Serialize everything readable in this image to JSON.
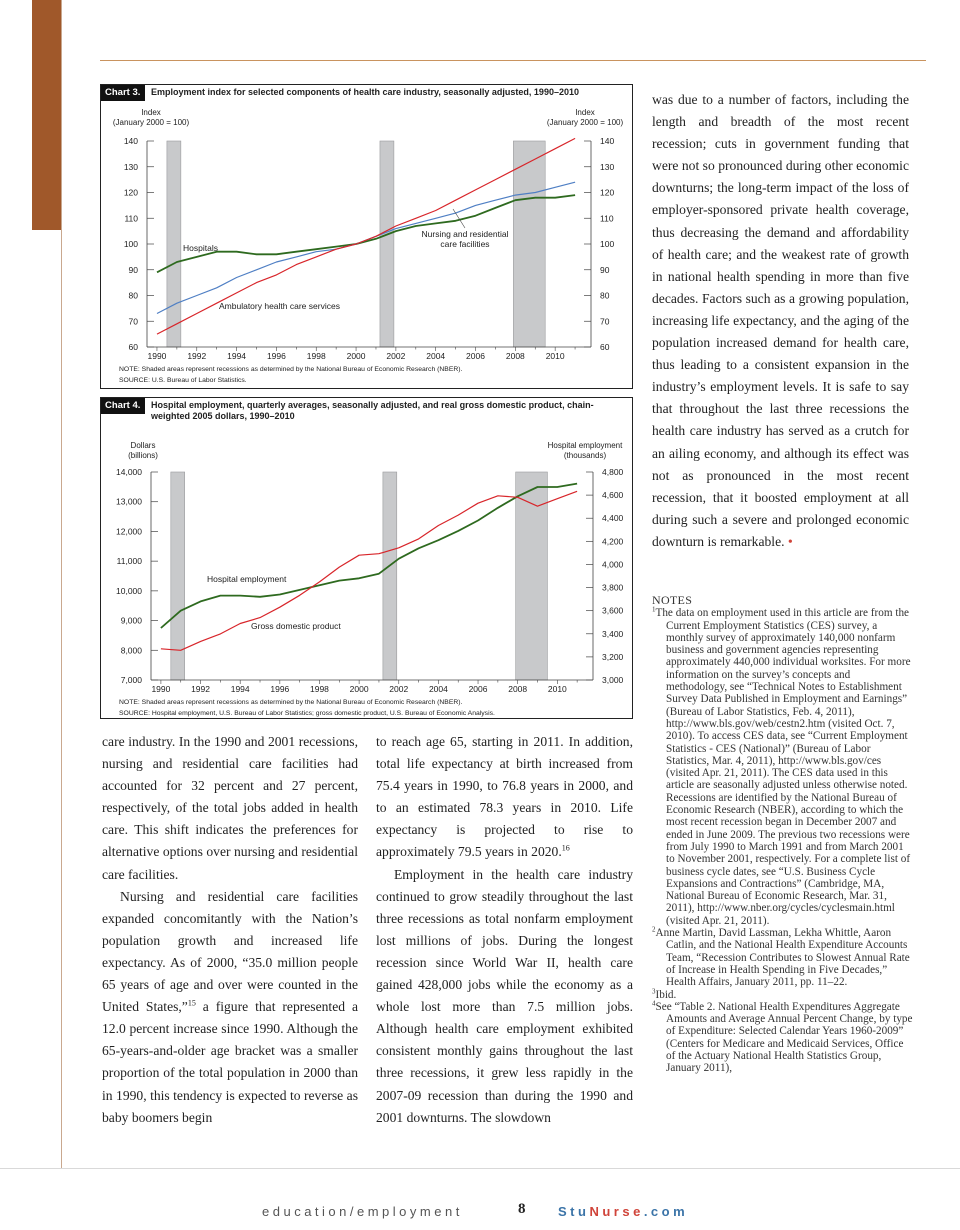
{
  "chart3": {
    "label": "Chart 3.",
    "title": "Employment index for selected components of health care industry, seasonally adjusted, 1990–2010",
    "left_axis_label": [
      "Index",
      "(January 2000 = 100)"
    ],
    "right_axis_label": [
      "Index",
      "(January 2000 = 100)"
    ],
    "annotations": [
      "Hospitals",
      "Ambulatory health care services",
      "Nursing and residential",
      "care facilities"
    ],
    "note": "NOTE: Shaded areas represent recessions as determined by the National Bureau of Economic Research (NBER).",
    "source": "SOURCE: U.S. Bureau of Labor Statistics."
  },
  "chart4": {
    "label": "Chart 4.",
    "title": "Hospital employment, quarterly averages, seasonally adjusted, and real gross domestic product, chain-weighted 2005 dollars, 1990–2010",
    "left_axis_label": [
      "Dollars",
      "(billions)"
    ],
    "right_axis_label": [
      "Hospital employment",
      "(thousands)"
    ],
    "annotations": [
      "Hospital employment",
      "Gross domestic product"
    ],
    "note": "NOTE: Shaded areas represent recessions as determined by the National Bureau of Economic Research (NBER).",
    "source": "SOURCE: Hospital employment, U.S. Bureau of Labor Statistics; gross domestic product, U.S. Bureau of Economic Analysis."
  },
  "chart_data": [
    {
      "type": "line",
      "title": "Employment index for selected components of health care industry, seasonally adjusted, 1990–2010",
      "ylabel": "Index (January 2000 = 100)",
      "xlim": [
        1989.5,
        2011.8
      ],
      "ylim": [
        60,
        140
      ],
      "x_ticks": [
        1990,
        1992,
        1994,
        1996,
        1998,
        2000,
        2002,
        2004,
        2006,
        2008,
        2010
      ],
      "y_ticks": [
        60,
        70,
        80,
        90,
        100,
        110,
        120,
        130,
        140
      ],
      "recessions": [
        [
          1990.5,
          1991.2
        ],
        [
          2001.2,
          2001.9
        ],
        [
          2007.9,
          2009.5
        ]
      ],
      "series": [
        {
          "name": "Hospitals",
          "color": "#2e6a1f",
          "x": [
            1990,
            1991,
            1992,
            1993,
            1994,
            1995,
            1996,
            1997,
            1998,
            1999,
            2000,
            2001,
            2002,
            2003,
            2004,
            2005,
            2006,
            2007,
            2008,
            2009,
            2010,
            2011
          ],
          "y": [
            89,
            93,
            95,
            97,
            97,
            96,
            96,
            97,
            98,
            99,
            100,
            102,
            105,
            107,
            108,
            109,
            111,
            114,
            117,
            118,
            118,
            119
          ]
        },
        {
          "name": "Ambulatory health care services",
          "color": "#4f7fc4",
          "x": [
            1990,
            1991,
            1992,
            1993,
            1994,
            1995,
            1996,
            1997,
            1998,
            1999,
            2000,
            2001,
            2002,
            2003,
            2004,
            2005,
            2006,
            2007,
            2008,
            2009,
            2010,
            2011
          ],
          "y": [
            73,
            77,
            80,
            83,
            87,
            90,
            93,
            95,
            97,
            98,
            100,
            103,
            106,
            108,
            110,
            112,
            115,
            117,
            119,
            120,
            122,
            124
          ]
        },
        {
          "name": "Nursing and residential care facilities",
          "color": "#d8252a",
          "x": [
            1990,
            1991,
            1992,
            1993,
            1994,
            1995,
            1996,
            1997,
            1998,
            1999,
            2000,
            2001,
            2002,
            2003,
            2004,
            2005,
            2006,
            2007,
            2008,
            2009,
            2010,
            2011
          ],
          "y": [
            65,
            69,
            73,
            77,
            81,
            85,
            88,
            92,
            95,
            98,
            100,
            103,
            107,
            110,
            113,
            117,
            121,
            125,
            129,
            133,
            137,
            141
          ]
        }
      ]
    },
    {
      "type": "line",
      "title": "Hospital employment, quarterly averages, seasonally adjusted, and real gross domestic product, chain-weighted 2005 dollars, 1990–2010",
      "ylabel": "Dollars (billions)",
      "y2label": "Hospital employment (thousands)",
      "xlim": [
        1989.5,
        2011.8
      ],
      "ylim": [
        7000,
        14000
      ],
      "y2lim": [
        3000,
        4800
      ],
      "x_ticks": [
        1990,
        1992,
        1994,
        1996,
        1998,
        2000,
        2002,
        2004,
        2006,
        2008,
        2010
      ],
      "y_ticks": [
        7000,
        8000,
        9000,
        10000,
        11000,
        12000,
        13000,
        14000
      ],
      "y2_ticks": [
        3000,
        3200,
        3400,
        3600,
        3800,
        4000,
        4200,
        4400,
        4600,
        4800
      ],
      "recessions": [
        [
          1990.5,
          1991.2
        ],
        [
          2001.2,
          2001.9
        ],
        [
          2007.9,
          2009.5
        ]
      ],
      "series": [
        {
          "name": "Hospital employment",
          "axis": "right",
          "color": "#2e6a1f",
          "x": [
            1990,
            1991,
            1992,
            1993,
            1994,
            1995,
            1996,
            1997,
            1998,
            1999,
            2000,
            2001,
            2002,
            2003,
            2004,
            2005,
            2006,
            2007,
            2008,
            2009,
            2010,
            2011
          ],
          "y": [
            3450,
            3600,
            3680,
            3730,
            3730,
            3720,
            3740,
            3780,
            3820,
            3860,
            3880,
            3920,
            4050,
            4140,
            4210,
            4290,
            4380,
            4490,
            4590,
            4670,
            4670,
            4700
          ]
        },
        {
          "name": "Gross domestic product",
          "axis": "left",
          "color": "#d8252a",
          "x": [
            1990,
            1991,
            1992,
            1993,
            1994,
            1995,
            1996,
            1997,
            1998,
            1999,
            2000,
            2001,
            2002,
            2003,
            2004,
            2005,
            2006,
            2007,
            2008,
            2009,
            2010,
            2011
          ],
          "y": [
            8050,
            8000,
            8300,
            8550,
            8900,
            9100,
            9450,
            9850,
            10300,
            10800,
            11200,
            11250,
            11450,
            11750,
            12200,
            12550,
            12950,
            13200,
            13150,
            12850,
            13100,
            13350
          ]
        }
      ]
    }
  ],
  "body": {
    "col1": [
      "care industry. In the 1990 and 2001 recessions, nursing and residential care facilities had accounted for 32 percent and 27 percent, respectively, of the total jobs added in health care.  This shift indicates the preferences for alternative options over nursing and residential care facilities.",
      "Nursing and residential care facilities expanded concomitantly with the Nation’s population growth and increased life expectancy. As of 2000, “35.0 million people 65 years of age and over were counted in the United States,”",
      "15",
      " a figure that represented a 12.0 percent increase since 1990. Although the 65-years-and-older age bracket was a smaller proportion of the total population in 2000 than in 1990, this tendency is expected to reverse as baby boomers begin"
    ],
    "col2": [
      "to reach age 65, starting in 2011. In addition, total life expectancy at birth increased from 75.4 years in 1990, to 76.8 years in 2000, and to an estimated 78.3 years in 2010. Life expectancy is projected to rise to approximately 79.5 years in 2020.",
      "16",
      "Employment in the health care industry continued to grow steadily throughout the last three recessions as total nonfarm employment lost millions of jobs. During the longest recession since World War II, health care gained 428,000 jobs while the economy as a whole lost more than 7.5 million jobs. Although health care employment exhibited consistent monthly gains throughout the last three recessions, it grew less rapidly in the 2007-09 recession than during the 1990 and 2001 downturns. The slowdown"
    ],
    "col3": "was due to a number of factors, including the length and breadth of the most recent recession; cuts in government funding that were not so pronounced during other economic downturns; the long-term impact of the loss of employer-sponsored private health coverage, thus decreasing the demand and affordability of health care; and the weakest rate of growth in national health spending in more than five decades. Factors such as a growing population, increasing life expectancy, and the aging of the population increased demand for health care, thus leading to a consistent expansion in the industry’s employment levels. It is safe to say that throughout the last three recessions the health care industry has served as a crutch for an ailing economy, and although its effect was not as pronounced in the most recent recession, that it boosted employment at all during such a severe and prolonged economic downturn is remarkable.",
    "end_mark": "•"
  },
  "notes": {
    "heading": "NOTES",
    "items": [
      {
        "num": "1",
        "text": "The data on employment used in this article are from the Current Employment Statistics (CES) survey, a monthly survey of approximately 140,000 nonfarm business and government agencies representing approximately 440,000 individual worksites. For more information on the survey’s concepts and methodology, see “Technical Notes to Establishment Survey Data Published in Employment and Earnings” (Bureau of Labor Statistics, Feb. 4, 2011), http://www.bls.gov/web/cestn2.htm (visited Oct. 7, 2010). To access CES data, see “Current Employment Statistics - CES (National)” (Bureau of Labor Statistics, Mar. 4, 2011), http://www.bls.gov/ces (visited Apr. 21, 2011). The CES data used in this article are seasonally adjusted unless otherwise noted. Recessions are identified by the National Bureau of Economic Research (NBER), according to which the most recent recession began in December 2007 and ended in June 2009. The previous two recessions were from July 1990 to March 1991 and from March 2001 to November 2001, respectively. For a complete list of business cycle dates, see “U.S. Business Cycle Expansions and Contractions” (Cambridge, MA, National Bureau of Economic Research, Mar. 31, 2011), http://www.nber.org/cycles/cyclesmain.html (visited Apr. 21, 2011)."
      },
      {
        "num": "2",
        "text": "Anne Martin, David Lassman, Lekha Whittle, Aaron Catlin, and the National Health Expenditure Accounts Team, “Recession Contributes to Slowest Annual Rate of Increase in Health Spending in Five Decades,” Health Affairs, January 2011, pp. 11–22."
      },
      {
        "num": "3",
        "text": "Ibid."
      },
      {
        "num": "4",
        "text": "See “Table 2. National Health Expenditures Aggregate Amounts and Average Annual Percent Change, by type of Expenditure: Selected Calendar Years 1960-2009” (Centers for Medicare and Medicaid Services, Office of the Actuary National Health Statistics Group, January 2011),"
      }
    ]
  },
  "footer": {
    "left": "education/employment",
    "page": "8",
    "brand_a": "Stu",
    "brand_b": "Nurse",
    "brand_c": ".com"
  }
}
